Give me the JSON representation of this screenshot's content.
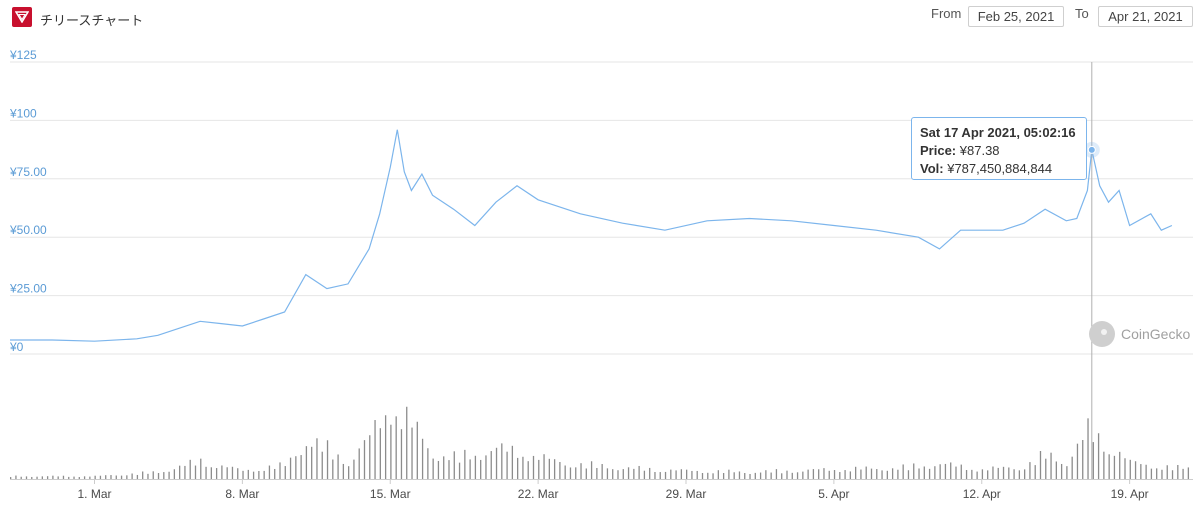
{
  "header": {
    "title": "チリースチャート",
    "from_label": "From",
    "from_value": "Feb 25, 2021",
    "to_label": "To",
    "to_value": "Apr 21, 2021"
  },
  "tooltip": {
    "date": "Sat 17 Apr 2021, 05:02:16",
    "price_label": "Price:",
    "price_value": "¥87.38",
    "vol_label": "Vol:",
    "vol_value": "¥787,450,884,844"
  },
  "watermark": {
    "text": "CoinGecko"
  },
  "colors": {
    "line": "#7cb5ec",
    "volume": "#8c8c8c",
    "grid": "#e6e6e6",
    "crosshair": "#b0b0b0",
    "brand": "#c8102e"
  },
  "chart_data": {
    "type": "line",
    "title": "",
    "ylabel": "",
    "ylim": [
      0,
      125
    ],
    "y_ticks": [
      "¥0",
      "¥25.00",
      "¥50.00",
      "¥75.00",
      "¥100",
      "¥125"
    ],
    "x_ticks": [
      "1. Mar",
      "8. Mar",
      "15. Mar",
      "22. Mar",
      "29. Mar",
      "5. Apr",
      "12. Apr",
      "19. Apr"
    ],
    "xlim": [
      "2021-02-25",
      "2021-04-21"
    ],
    "price_series": {
      "name": "Price",
      "points": [
        [
          "2021-02-25",
          6.0
        ],
        [
          "2021-02-27",
          6.0
        ],
        [
          "2021-03-01",
          5.5
        ],
        [
          "2021-03-03",
          6.5
        ],
        [
          "2021-03-04",
          8.0
        ],
        [
          "2021-03-05",
          11.0
        ],
        [
          "2021-03-06",
          14.0
        ],
        [
          "2021-03-07",
          13.0
        ],
        [
          "2021-03-08",
          12.0
        ],
        [
          "2021-03-09",
          15.0
        ],
        [
          "2021-03-10",
          18.0
        ],
        [
          "2021-03-11",
          34.0
        ],
        [
          "2021-03-12",
          28.0
        ],
        [
          "2021-03-13",
          30.0
        ],
        [
          "2021-03-14",
          45.0
        ],
        [
          "2021-03-14T12:00",
          60.0
        ],
        [
          "2021-03-15",
          80.0
        ],
        [
          "2021-03-15T08:00",
          96.0
        ],
        [
          "2021-03-15T16:00",
          78.0
        ],
        [
          "2021-03-16",
          70.0
        ],
        [
          "2021-03-16T12:00",
          77.0
        ],
        [
          "2021-03-17",
          68.0
        ],
        [
          "2021-03-18",
          62.0
        ],
        [
          "2021-03-19",
          55.0
        ],
        [
          "2021-03-20",
          65.0
        ],
        [
          "2021-03-21",
          72.0
        ],
        [
          "2021-03-22",
          66.0
        ],
        [
          "2021-03-24",
          60.0
        ],
        [
          "2021-03-26",
          56.0
        ],
        [
          "2021-03-28",
          53.0
        ],
        [
          "2021-03-30",
          57.0
        ],
        [
          "2021-04-01",
          58.0
        ],
        [
          "2021-04-03",
          57.0
        ],
        [
          "2021-04-05",
          55.0
        ],
        [
          "2021-04-07",
          53.0
        ],
        [
          "2021-04-09",
          50.0
        ],
        [
          "2021-04-10",
          45.0
        ],
        [
          "2021-04-11",
          53.0
        ],
        [
          "2021-04-13",
          53.0
        ],
        [
          "2021-04-14",
          56.0
        ],
        [
          "2021-04-15",
          62.0
        ],
        [
          "2021-04-16",
          57.0
        ],
        [
          "2021-04-16T12:00",
          58.0
        ],
        [
          "2021-04-17",
          70.0
        ],
        [
          "2021-04-17T05:02",
          87.38
        ],
        [
          "2021-04-17T14:00",
          72.0
        ],
        [
          "2021-04-18",
          65.0
        ],
        [
          "2021-04-18T12:00",
          70.0
        ],
        [
          "2021-04-19",
          55.0
        ],
        [
          "2021-04-20",
          60.0
        ],
        [
          "2021-04-20T12:00",
          53.0
        ],
        [
          "2021-04-21",
          55.0
        ]
      ]
    },
    "volume_series": {
      "name": "Vol",
      "points": [
        [
          "2021-02-25",
          2
        ],
        [
          "2021-03-01",
          2
        ],
        [
          "2021-03-04",
          5
        ],
        [
          "2021-03-06",
          13
        ],
        [
          "2021-03-08",
          6
        ],
        [
          "2021-03-10",
          10
        ],
        [
          "2021-03-11",
          28
        ],
        [
          "2021-03-12",
          22
        ],
        [
          "2021-03-13",
          12
        ],
        [
          "2021-03-14",
          30
        ],
        [
          "2021-03-15",
          55
        ],
        [
          "2021-03-16",
          40
        ],
        [
          "2021-03-17",
          18
        ],
        [
          "2021-03-18",
          16
        ],
        [
          "2021-03-19",
          18
        ],
        [
          "2021-03-20",
          22
        ],
        [
          "2021-03-21",
          20
        ],
        [
          "2021-03-23",
          12
        ],
        [
          "2021-03-26",
          8
        ],
        [
          "2021-03-29",
          6
        ],
        [
          "2021-04-01",
          5
        ],
        [
          "2021-04-05",
          7
        ],
        [
          "2021-04-08",
          8
        ],
        [
          "2021-04-10",
          11
        ],
        [
          "2021-04-12",
          7
        ],
        [
          "2021-04-14",
          9
        ],
        [
          "2021-04-15",
          18
        ],
        [
          "2021-04-16",
          12
        ],
        [
          "2021-04-17",
          35
        ],
        [
          "2021-04-18",
          25
        ],
        [
          "2021-04-19",
          12
        ],
        [
          "2021-04-21",
          8
        ]
      ]
    },
    "crosshair_x": "2021-04-17T05:02"
  }
}
